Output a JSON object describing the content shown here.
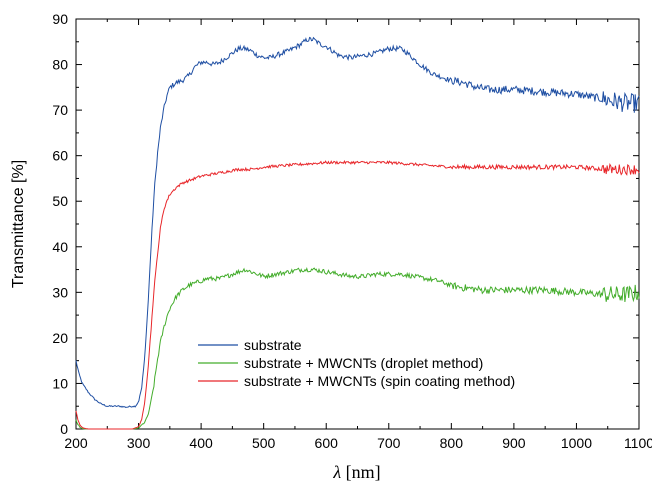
{
  "chart_data": {
    "type": "line",
    "title": "",
    "xlabel_symbol": "λ",
    "xlabel_unit": " [nm]",
    "ylabel": "Transmittance [%]",
    "xlim": [
      200,
      1100
    ],
    "ylim": [
      0,
      90
    ],
    "xticks": [
      200,
      300,
      400,
      500,
      600,
      700,
      800,
      900,
      1000,
      1100
    ],
    "yticks": [
      0,
      10,
      20,
      30,
      40,
      50,
      60,
      70,
      80,
      90
    ],
    "grid": false,
    "legend_position": "lower-center",
    "series": [
      {
        "name": "substrate",
        "color": "#1f4fa3",
        "noise": 0.55,
        "x": [
          200,
          205,
          210,
          215,
          220,
          230,
          240,
          250,
          260,
          270,
          280,
          290,
          295,
          300,
          305,
          310,
          315,
          320,
          325,
          330,
          335,
          340,
          345,
          350,
          360,
          370,
          380,
          390,
          400,
          410,
          420,
          430,
          440,
          450,
          460,
          470,
          480,
          490,
          500,
          510,
          520,
          540,
          560,
          570,
          580,
          590,
          600,
          610,
          620,
          640,
          660,
          680,
          700,
          720,
          730,
          750,
          770,
          790,
          800,
          820,
          840,
          860,
          880,
          900,
          950,
          1000,
          1020,
          1040,
          1060,
          1080,
          1090,
          1095,
          1100
        ],
        "y": [
          15,
          12,
          10,
          9,
          8,
          6.5,
          5.5,
          5,
          5,
          5,
          4.8,
          5,
          5,
          6,
          9,
          16,
          27,
          40,
          52,
          60,
          66,
          70,
          73,
          75,
          76,
          76.5,
          77.5,
          79.5,
          80.5,
          80.5,
          80,
          80.5,
          81.5,
          82.5,
          83.5,
          83.5,
          83,
          82,
          81.5,
          81.5,
          82,
          83,
          84.5,
          85.5,
          85.5,
          84.5,
          84,
          83,
          82,
          81.5,
          82,
          82.5,
          83.5,
          83.5,
          82.5,
          80,
          78,
          77,
          76.5,
          76,
          75,
          74.5,
          74.5,
          74.5,
          74,
          73.5,
          73,
          72.5,
          72,
          71.5,
          71.5,
          71.5,
          71.5
        ]
      },
      {
        "name": "substrate + MWCNTs (droplet method)",
        "color": "#44ad2c",
        "noise": 0.5,
        "x": [
          200,
          203,
          206,
          210,
          215,
          220,
          240,
          260,
          280,
          290,
          300,
          310,
          315,
          320,
          325,
          330,
          335,
          340,
          345,
          350,
          360,
          370,
          380,
          390,
          400,
          410,
          420,
          430,
          440,
          450,
          460,
          470,
          480,
          490,
          500,
          520,
          540,
          560,
          570,
          580,
          600,
          620,
          640,
          660,
          680,
          700,
          720,
          740,
          760,
          780,
          800,
          820,
          850,
          900,
          950,
          1000,
          1050,
          1080,
          1100
        ],
        "y": [
          2,
          1,
          0.4,
          0.1,
          0,
          0,
          0,
          0,
          0,
          0,
          0.2,
          1.5,
          3,
          6,
          10,
          15,
          19,
          22,
          24.5,
          26.5,
          29,
          30.5,
          31.5,
          32,
          32.5,
          33,
          33,
          33,
          33.5,
          34,
          34.5,
          35,
          34.5,
          34,
          33.5,
          34,
          34.5,
          35,
          35,
          35,
          34.5,
          34,
          33.5,
          33.5,
          34,
          34,
          34,
          33.5,
          33,
          32.5,
          31.5,
          31,
          30.5,
          30.5,
          30.5,
          30,
          29.5,
          29.5,
          30
        ]
      },
      {
        "name": "substrate + MWCNTs (spin coating method)",
        "color": "#e8262a",
        "noise": 0.3,
        "x": [
          200,
          203,
          206,
          210,
          215,
          220,
          240,
          260,
          280,
          290,
          300,
          305,
          310,
          315,
          320,
          325,
          330,
          335,
          340,
          345,
          350,
          360,
          370,
          380,
          390,
          400,
          420,
          440,
          460,
          480,
          500,
          550,
          600,
          650,
          700,
          750,
          800,
          850,
          900,
          950,
          1000,
          1050,
          1080,
          1100
        ],
        "y": [
          4,
          2,
          1,
          0.3,
          0.1,
          0,
          0,
          0,
          0,
          0,
          0.5,
          2,
          6,
          13,
          22,
          31,
          38,
          44,
          48,
          50,
          51.5,
          53,
          54,
          54.5,
          55,
          55.5,
          56,
          56.5,
          57,
          57,
          57.5,
          58,
          58.5,
          58.5,
          58.5,
          58,
          57.5,
          57.5,
          57.5,
          57.5,
          57.5,
          57,
          57,
          57
        ]
      }
    ]
  }
}
